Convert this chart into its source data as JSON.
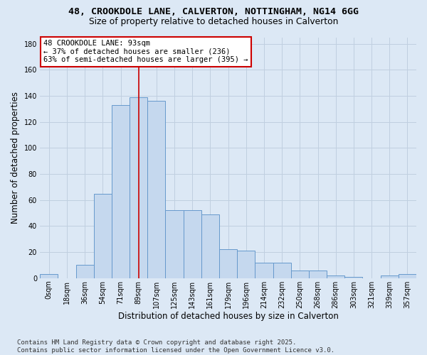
{
  "title_line1": "48, CROOKDOLE LANE, CALVERTON, NOTTINGHAM, NG14 6GG",
  "title_line2": "Size of property relative to detached houses in Calverton",
  "xlabel": "Distribution of detached houses by size in Calverton",
  "ylabel": "Number of detached properties",
  "bar_values": [
    3,
    0,
    10,
    65,
    133,
    139,
    136,
    52,
    52,
    49,
    22,
    21,
    12,
    12,
    6,
    6,
    2,
    1,
    0,
    2,
    3
  ],
  "bin_labels": [
    "0sqm",
    "18sqm",
    "36sqm",
    "54sqm",
    "71sqm",
    "89sqm",
    "107sqm",
    "125sqm",
    "143sqm",
    "161sqm",
    "179sqm",
    "196sqm",
    "214sqm",
    "232sqm",
    "250sqm",
    "268sqm",
    "286sqm",
    "303sqm",
    "321sqm",
    "339sqm",
    "357sqm"
  ],
  "bar_color": "#c5d8ee",
  "bar_edge_color": "#6699cc",
  "background_color": "#dce8f5",
  "grid_color": "#c0cfe0",
  "vline_x": 5.0,
  "vline_color": "#cc0000",
  "annotation_text": "48 CROOKDOLE LANE: 93sqm\n← 37% of detached houses are smaller (236)\n63% of semi-detached houses are larger (395) →",
  "annotation_box_facecolor": "#ffffff",
  "annotation_box_edgecolor": "#cc0000",
  "ylim": [
    0,
    185
  ],
  "yticks": [
    0,
    20,
    40,
    60,
    80,
    100,
    120,
    140,
    160,
    180
  ],
  "footer_text": "Contains HM Land Registry data © Crown copyright and database right 2025.\nContains public sector information licensed under the Open Government Licence v3.0.",
  "title_fontsize": 9.5,
  "subtitle_fontsize": 8.8,
  "axis_label_fontsize": 8.5,
  "tick_fontsize": 7,
  "footer_fontsize": 6.5,
  "annot_fontsize": 7.5
}
